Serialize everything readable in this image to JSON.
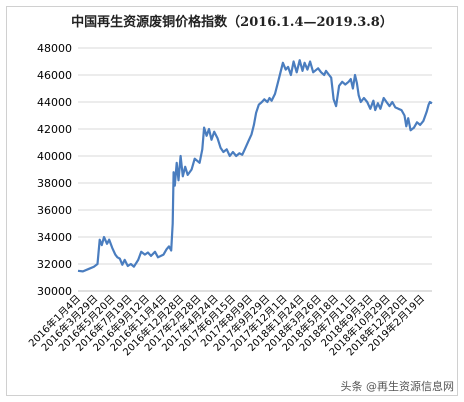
{
  "chart_data": {
    "type": "line",
    "title": "中国再生资源废铜价格指数（2016.1.4—2019.3.8）",
    "xlabel": "",
    "ylabel": "",
    "ylim": [
      30000,
      48000
    ],
    "yticks": [
      30000,
      32000,
      34000,
      36000,
      38000,
      40000,
      42000,
      44000,
      46000,
      48000
    ],
    "xlim": [
      "2016-01-04",
      "2019-03-08"
    ],
    "xtick_labels": [
      "2016年1月4日",
      "2016年3月29日",
      "2016年5月20日",
      "2016年7月19日",
      "2016年9月12日",
      "2016年11月4日",
      "2016年12月28日",
      "2017年2月28日",
      "2017年4月24日",
      "2017年6月15日",
      "2017年8月9日",
      "2017年9月29日",
      "2017年12月1日",
      "2018年1月24日",
      "2018年3月26日",
      "2018年5月18日",
      "2018年7月11日",
      "2018年9月3日",
      "2018年10月29日",
      "2018年12月20日",
      "2019年2月19日"
    ],
    "grid": "horizontal",
    "legend": "none",
    "line_color": "#4a7dbf",
    "series": [
      {
        "points": [
          [
            "2016-01-04",
            31500
          ],
          [
            "2016-01-20",
            31450
          ],
          [
            "2016-02-10",
            31650
          ],
          [
            "2016-02-25",
            31800
          ],
          [
            "2016-03-08",
            32000
          ],
          [
            "2016-03-15",
            33800
          ],
          [
            "2016-03-22",
            33400
          ],
          [
            "2016-03-29",
            34000
          ],
          [
            "2016-04-08",
            33500
          ],
          [
            "2016-04-15",
            33800
          ],
          [
            "2016-04-25",
            33200
          ],
          [
            "2016-05-05",
            32700
          ],
          [
            "2016-05-12",
            32500
          ],
          [
            "2016-05-20",
            32400
          ],
          [
            "2016-05-28",
            31950
          ],
          [
            "2016-06-05",
            32300
          ],
          [
            "2016-06-15",
            31850
          ],
          [
            "2016-06-25",
            32000
          ],
          [
            "2016-07-05",
            31800
          ],
          [
            "2016-07-19",
            32300
          ],
          [
            "2016-07-29",
            32900
          ],
          [
            "2016-08-10",
            32700
          ],
          [
            "2016-08-20",
            32850
          ],
          [
            "2016-08-30",
            32600
          ],
          [
            "2016-09-12",
            32900
          ],
          [
            "2016-09-22",
            32500
          ],
          [
            "2016-10-10",
            32700
          ],
          [
            "2016-10-20",
            33100
          ],
          [
            "2016-10-28",
            33300
          ],
          [
            "2016-11-04",
            33000
          ],
          [
            "2016-11-09",
            35000
          ],
          [
            "2016-11-12",
            38800
          ],
          [
            "2016-11-16",
            37800
          ],
          [
            "2016-11-22",
            39500
          ],
          [
            "2016-11-28",
            38200
          ],
          [
            "2016-12-05",
            40000
          ],
          [
            "2016-12-12",
            38500
          ],
          [
            "2016-12-20",
            39200
          ],
          [
            "2016-12-28",
            38600
          ],
          [
            "2017-01-10",
            39000
          ],
          [
            "2017-01-20",
            39800
          ],
          [
            "2017-02-05",
            39500
          ],
          [
            "2017-02-14",
            40500
          ],
          [
            "2017-02-20",
            42100
          ],
          [
            "2017-02-28",
            41500
          ],
          [
            "2017-03-08",
            42000
          ],
          [
            "2017-03-16",
            41200
          ],
          [
            "2017-03-25",
            41800
          ],
          [
            "2017-04-05",
            41300
          ],
          [
            "2017-04-15",
            40600
          ],
          [
            "2017-04-24",
            40300
          ],
          [
            "2017-05-05",
            40500
          ],
          [
            "2017-05-15",
            40000
          ],
          [
            "2017-05-25",
            40300
          ],
          [
            "2017-06-05",
            40000
          ],
          [
            "2017-06-15",
            40200
          ],
          [
            "2017-06-25",
            40100
          ],
          [
            "2017-07-05",
            40600
          ],
          [
            "2017-07-15",
            41100
          ],
          [
            "2017-07-25",
            41600
          ],
          [
            "2017-08-02",
            42300
          ],
          [
            "2017-08-09",
            43200
          ],
          [
            "2017-08-18",
            43800
          ],
          [
            "2017-08-28",
            44000
          ],
          [
            "2017-09-05",
            44200
          ],
          [
            "2017-09-15",
            44000
          ],
          [
            "2017-09-22",
            44300
          ],
          [
            "2017-09-29",
            44100
          ],
          [
            "2017-10-10",
            44600
          ],
          [
            "2017-10-20",
            45500
          ],
          [
            "2017-10-28",
            46200
          ],
          [
            "2017-11-05",
            46900
          ],
          [
            "2017-11-14",
            46400
          ],
          [
            "2017-11-22",
            46600
          ],
          [
            "2017-12-01",
            46000
          ],
          [
            "2017-12-10",
            47000
          ],
          [
            "2017-12-20",
            46200
          ],
          [
            "2017-12-30",
            47100
          ],
          [
            "2018-01-08",
            46300
          ],
          [
            "2018-01-15",
            46900
          ],
          [
            "2018-01-24",
            46400
          ],
          [
            "2018-02-02",
            47000
          ],
          [
            "2018-02-12",
            46200
          ],
          [
            "2018-02-28",
            46500
          ],
          [
            "2018-03-10",
            46200
          ],
          [
            "2018-03-20",
            46000
          ],
          [
            "2018-03-26",
            46300
          ],
          [
            "2018-04-05",
            46000
          ],
          [
            "2018-04-12",
            45800
          ],
          [
            "2018-04-20",
            44200
          ],
          [
            "2018-04-28",
            43700
          ],
          [
            "2018-05-08",
            45200
          ],
          [
            "2018-05-18",
            45500
          ],
          [
            "2018-05-28",
            45300
          ],
          [
            "2018-06-08",
            45500
          ],
          [
            "2018-06-15",
            45700
          ],
          [
            "2018-06-22",
            45000
          ],
          [
            "2018-06-29",
            46000
          ],
          [
            "2018-07-05",
            45400
          ],
          [
            "2018-07-11",
            44500
          ],
          [
            "2018-07-18",
            44000
          ],
          [
            "2018-07-28",
            44300
          ],
          [
            "2018-08-08",
            44000
          ],
          [
            "2018-08-18",
            43500
          ],
          [
            "2018-08-28",
            44100
          ],
          [
            "2018-09-03",
            43400
          ],
          [
            "2018-09-12",
            43900
          ],
          [
            "2018-09-20",
            43500
          ],
          [
            "2018-10-01",
            44300
          ],
          [
            "2018-10-10",
            44000
          ],
          [
            "2018-10-20",
            43700
          ],
          [
            "2018-10-29",
            44000
          ],
          [
            "2018-11-08",
            43600
          ],
          [
            "2018-11-18",
            43500
          ],
          [
            "2018-11-28",
            43400
          ],
          [
            "2018-12-08",
            43000
          ],
          [
            "2018-12-14",
            42200
          ],
          [
            "2018-12-20",
            42800
          ],
          [
            "2018-12-28",
            41900
          ],
          [
            "2019-01-08",
            42100
          ],
          [
            "2019-01-18",
            42500
          ],
          [
            "2019-01-28",
            42300
          ],
          [
            "2019-02-08",
            42600
          ],
          [
            "2019-02-19",
            43300
          ],
          [
            "2019-02-25",
            43800
          ],
          [
            "2019-03-01",
            44000
          ],
          [
            "2019-03-08",
            43900
          ]
        ]
      }
    ]
  },
  "watermark": "头条 @再生资源信息网"
}
